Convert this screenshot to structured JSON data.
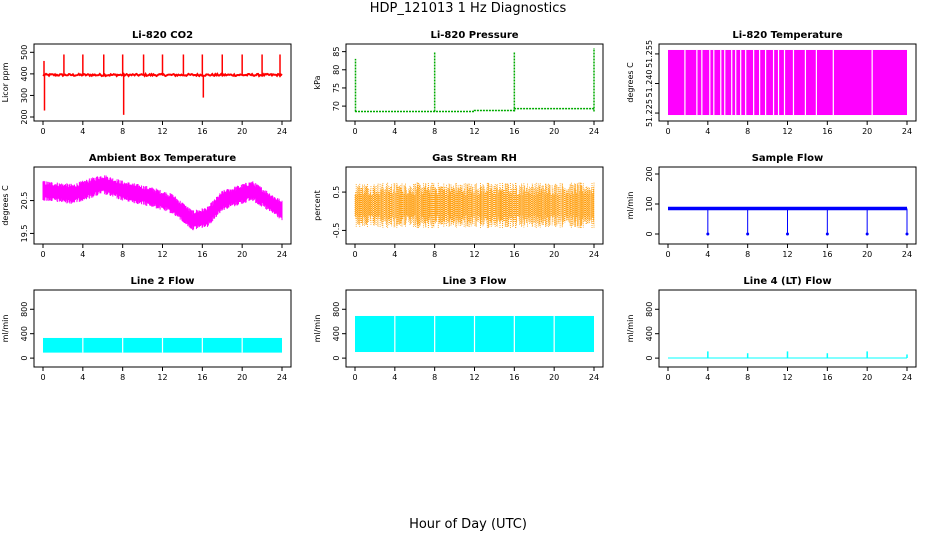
{
  "title": "HDP_121013  1 Hz Diagnostics",
  "xlabel": "Hour of Day (UTC)",
  "chart_data": [
    {
      "type": "line",
      "title": "Li-820 CO2",
      "ylabel": "Licor ppm",
      "color": "#ff0000",
      "yticks": [
        "200",
        "300",
        "400",
        "500"
      ],
      "ylim": [
        200,
        520
      ],
      "xticks": [
        "0",
        "4",
        "8",
        "12",
        "16",
        "20",
        "24"
      ],
      "xlim": [
        0,
        24
      ],
      "baseline": 395,
      "noise": 10,
      "spikes": [
        [
          0.1,
          460
        ],
        [
          0.15,
          230
        ],
        [
          2.1,
          490
        ],
        [
          4.0,
          490
        ],
        [
          6.1,
          490
        ],
        [
          8.0,
          490
        ],
        [
          8.1,
          210
        ],
        [
          10.1,
          490
        ],
        [
          12.0,
          490
        ],
        [
          14.1,
          490
        ],
        [
          16.0,
          490
        ],
        [
          16.1,
          290
        ],
        [
          18.0,
          490
        ],
        [
          20.0,
          490
        ],
        [
          22.0,
          490
        ],
        [
          23.8,
          490
        ]
      ]
    },
    {
      "type": "line",
      "title": "Li-820 Pressure",
      "ylabel": "kPa",
      "color": "#00aa00",
      "yticks": [
        "70",
        "75",
        "80",
        "85"
      ],
      "ylim": [
        67,
        86
      ],
      "xticks": [
        "0",
        "4",
        "8",
        "12",
        "16",
        "20",
        "24"
      ],
      "xlim": [
        0,
        24
      ],
      "steps": [
        [
          0,
          68.5
        ],
        [
          12,
          68.8
        ],
        [
          16,
          69.3
        ],
        [
          24,
          69.3
        ]
      ],
      "spikes": [
        [
          0.05,
          83
        ],
        [
          8,
          85
        ],
        [
          16,
          85
        ],
        [
          24,
          86
        ]
      ]
    },
    {
      "type": "line",
      "title": "Li-820 Temperature",
      "ylabel": "degrees C",
      "color": "#ff00ff",
      "yticks": [
        "51.225",
        "51.240",
        "51.255"
      ],
      "ylim": [
        51.223,
        51.258
      ],
      "xticks": [
        "0",
        "4",
        "8",
        "12",
        "16",
        "20",
        "24"
      ],
      "xlim": [
        0,
        24
      ],
      "band": [
        51.224,
        51.257
      ],
      "gaps": [
        1.7,
        2.9,
        3.4,
        4.2,
        4.6,
        5.3,
        5.7,
        6.4,
        6.8,
        7.3,
        7.8,
        8.6,
        9.2,
        9.8,
        10.6,
        11.1,
        11.7,
        12.6,
        13.8,
        14.9,
        16.6,
        20.5
      ]
    },
    {
      "type": "line",
      "title": "Ambient Box Temperature",
      "ylabel": "degrees C",
      "color": "#ff00ff",
      "yticks": [
        "19.5",
        "20.5"
      ],
      "ylim": [
        19.3,
        21.4
      ],
      "xticks": [
        "0",
        "4",
        "8",
        "12",
        "16",
        "20",
        "24"
      ],
      "xlim": [
        0,
        24
      ],
      "center": [
        [
          0,
          20.8
        ],
        [
          3,
          20.7
        ],
        [
          6,
          21.0
        ],
        [
          8,
          20.8
        ],
        [
          11,
          20.6
        ],
        [
          13,
          20.4
        ],
        [
          15,
          19.9
        ],
        [
          16.5,
          20.0
        ],
        [
          18,
          20.5
        ],
        [
          21,
          20.8
        ],
        [
          24,
          20.2
        ]
      ],
      "halfwidth": 0.28
    },
    {
      "type": "scatter",
      "title": "Gas Stream RH",
      "ylabel": "percent",
      "color": "#ff9900",
      "yticks": [
        "-0.5",
        "0.5"
      ],
      "ylim": [
        -0.75,
        1.05
      ],
      "xticks": [
        "0",
        "4",
        "8",
        "12",
        "16",
        "20",
        "24"
      ],
      "xlim": [
        0,
        24
      ],
      "center": 0.15,
      "halfwidth": 0.5
    },
    {
      "type": "line",
      "title": "Sample Flow",
      "ylabel": "ml/min",
      "color": "#0000ff",
      "yticks": [
        "0",
        "100",
        "200"
      ],
      "ylim": [
        -20,
        210
      ],
      "xticks": [
        "0",
        "4",
        "8",
        "12",
        "16",
        "20",
        "24"
      ],
      "xlim": [
        0,
        24
      ],
      "baseline": 85,
      "dips": [
        4,
        8,
        12,
        16,
        20,
        24
      ]
    },
    {
      "type": "area",
      "title": "Line 2 Flow",
      "ylabel": "ml/min",
      "color": "#00ffff",
      "yticks": [
        "0",
        "400",
        "800"
      ],
      "ylim": [
        -80,
        1050
      ],
      "xticks": [
        "0",
        "4",
        "8",
        "12",
        "16",
        "20",
        "24"
      ],
      "xlim": [
        0,
        24
      ],
      "band": [
        90,
        330
      ],
      "gaps": [
        4,
        8,
        12,
        16,
        20
      ]
    },
    {
      "type": "area",
      "title": "Line 3 Flow",
      "ylabel": "ml/min",
      "color": "#00ffff",
      "yticks": [
        "0",
        "400",
        "800"
      ],
      "ylim": [
        -80,
        1050
      ],
      "xticks": [
        "0",
        "4",
        "8",
        "12",
        "16",
        "20",
        "24"
      ],
      "xlim": [
        0,
        24
      ],
      "band": [
        100,
        690
      ],
      "gaps": [
        4,
        8,
        12,
        16,
        20
      ]
    },
    {
      "type": "line",
      "title": "Line 4 (LT) Flow",
      "ylabel": "ml/min",
      "color": "#00ffff",
      "yticks": [
        "0",
        "400",
        "800"
      ],
      "ylim": [
        -80,
        1050
      ],
      "xticks": [
        "0",
        "4",
        "8",
        "12",
        "16",
        "20",
        "24"
      ],
      "xlim": [
        0,
        24
      ],
      "baseline": 2,
      "spikes": [
        [
          4,
          110
        ],
        [
          8,
          80
        ],
        [
          12,
          110
        ],
        [
          16,
          80
        ],
        [
          20,
          110
        ],
        [
          24,
          60
        ]
      ]
    }
  ]
}
